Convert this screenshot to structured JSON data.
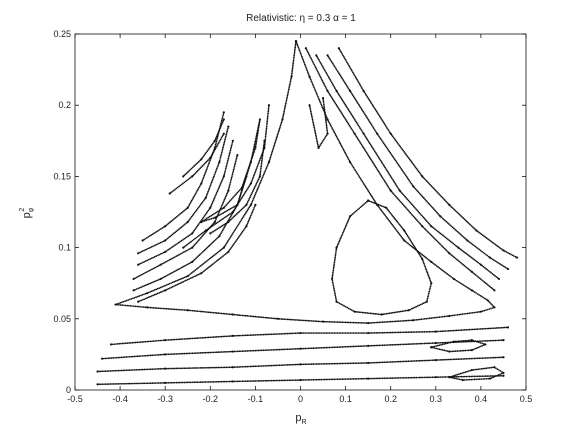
{
  "chart_data": {
    "type": "scatter",
    "title": "Relativistic: η = 0.3 α = 1",
    "xlabel": "pR",
    "ylabel": "pφ2",
    "xlabel_main": "p",
    "xlabel_sub": "R",
    "ylabel_main": "p",
    "ylabel_sub": "φ",
    "ylabel_sup": "2",
    "xlim": [
      -0.5,
      0.5
    ],
    "ylim": [
      0,
      0.25
    ],
    "xticks": [
      -0.5,
      -0.4,
      -0.3,
      -0.2,
      -0.1,
      0,
      0.1,
      0.2,
      0.3,
      0.4,
      0.5
    ],
    "yticks": [
      0,
      0.05,
      0.1,
      0.15,
      0.2,
      0.25
    ],
    "xtick_labels": [
      "-0.5",
      "-0.4",
      "-0.3",
      "-0.2",
      "-0.1",
      "0",
      "0.1",
      "0.2",
      "0.3",
      "0.4",
      "0.5"
    ],
    "ytick_labels": [
      "0",
      "0.05",
      "0.1",
      "0.15",
      "0.2",
      "0.25"
    ],
    "grid": false,
    "marker_color": "#111111",
    "series": [
      {
        "values": [
          [
            -0.01,
            0.245
          ],
          [
            0.02,
            0.22
          ],
          [
            0.06,
            0.19
          ],
          [
            0.11,
            0.16
          ],
          [
            0.17,
            0.13
          ],
          [
            0.23,
            0.105
          ],
          [
            0.29,
            0.09
          ],
          [
            0.34,
            0.078
          ],
          [
            0.38,
            0.07
          ],
          [
            0.415,
            0.063
          ],
          [
            0.43,
            0.058
          ],
          [
            0.4,
            0.055
          ],
          [
            0.33,
            0.052
          ],
          [
            0.25,
            0.049
          ],
          [
            0.15,
            0.047
          ],
          [
            0.05,
            0.048
          ],
          [
            -0.05,
            0.05
          ],
          [
            -0.15,
            0.053
          ],
          [
            -0.25,
            0.056
          ],
          [
            -0.34,
            0.058
          ],
          [
            -0.41,
            0.06
          ],
          [
            -0.34,
            0.068
          ],
          [
            -0.25,
            0.08
          ],
          [
            -0.17,
            0.1
          ],
          [
            -0.11,
            0.13
          ],
          [
            -0.07,
            0.16
          ],
          [
            -0.04,
            0.19
          ],
          [
            -0.02,
            0.22
          ],
          [
            -0.01,
            0.245
          ]
        ]
      },
      {
        "values": [
          [
            0.15,
            0.133
          ],
          [
            0.19,
            0.128
          ],
          [
            0.23,
            0.112
          ],
          [
            0.27,
            0.092
          ],
          [
            0.29,
            0.075
          ],
          [
            0.28,
            0.062
          ],
          [
            0.24,
            0.056
          ],
          [
            0.18,
            0.053
          ],
          [
            0.12,
            0.055
          ],
          [
            0.08,
            0.062
          ],
          [
            0.07,
            0.078
          ],
          [
            0.08,
            0.1
          ],
          [
            0.11,
            0.122
          ],
          [
            0.15,
            0.133
          ]
        ]
      },
      {
        "values": [
          [
            -0.45,
            0.004
          ],
          [
            -0.3,
            0.005
          ],
          [
            -0.15,
            0.006
          ],
          [
            0,
            0.007
          ],
          [
            0.15,
            0.008
          ],
          [
            0.3,
            0.009
          ],
          [
            0.45,
            0.01
          ]
        ]
      },
      {
        "values": [
          [
            -0.45,
            0.013
          ],
          [
            -0.3,
            0.015
          ],
          [
            -0.15,
            0.016
          ],
          [
            0,
            0.018
          ],
          [
            0.15,
            0.019
          ],
          [
            0.3,
            0.021
          ],
          [
            0.45,
            0.023
          ]
        ]
      },
      {
        "values": [
          [
            -0.44,
            0.022
          ],
          [
            -0.3,
            0.025
          ],
          [
            -0.15,
            0.027
          ],
          [
            0,
            0.029
          ],
          [
            0.15,
            0.031
          ],
          [
            0.3,
            0.033
          ],
          [
            0.45,
            0.035
          ]
        ]
      },
      {
        "values": [
          [
            -0.42,
            0.032
          ],
          [
            -0.3,
            0.035
          ],
          [
            -0.15,
            0.038
          ],
          [
            0,
            0.04
          ],
          [
            0.15,
            0.04
          ],
          [
            0.3,
            0.041
          ],
          [
            0.46,
            0.044
          ]
        ]
      },
      {
        "values": [
          [
            0.29,
            0.03
          ],
          [
            0.34,
            0.034
          ],
          [
            0.38,
            0.035
          ],
          [
            0.41,
            0.032
          ],
          [
            0.38,
            0.028
          ],
          [
            0.33,
            0.027
          ],
          [
            0.29,
            0.03
          ]
        ]
      },
      {
        "values": [
          [
            0.33,
            0.009
          ],
          [
            0.38,
            0.014
          ],
          [
            0.43,
            0.016
          ],
          [
            0.45,
            0.012
          ],
          [
            0.42,
            0.008
          ],
          [
            0.36,
            0.007
          ],
          [
            0.33,
            0.009
          ]
        ]
      },
      {
        "values": [
          [
            -0.36,
            0.062
          ],
          [
            -0.3,
            0.07
          ],
          [
            -0.22,
            0.082
          ],
          [
            -0.16,
            0.097
          ],
          [
            -0.12,
            0.115
          ],
          [
            -0.1,
            0.13
          ]
        ]
      },
      {
        "values": [
          [
            -0.37,
            0.07
          ],
          [
            -0.31,
            0.078
          ],
          [
            -0.24,
            0.09
          ],
          [
            -0.18,
            0.108
          ],
          [
            -0.14,
            0.13
          ],
          [
            -0.12,
            0.15
          ]
        ]
      },
      {
        "values": [
          [
            -0.37,
            0.078
          ],
          [
            -0.31,
            0.088
          ],
          [
            -0.24,
            0.1
          ],
          [
            -0.19,
            0.118
          ],
          [
            -0.16,
            0.14
          ],
          [
            -0.14,
            0.165
          ]
        ]
      },
      {
        "values": [
          [
            -0.36,
            0.088
          ],
          [
            -0.3,
            0.097
          ],
          [
            -0.24,
            0.11
          ],
          [
            -0.2,
            0.128
          ],
          [
            -0.17,
            0.15
          ],
          [
            -0.15,
            0.175
          ]
        ]
      },
      {
        "values": [
          [
            -0.36,
            0.096
          ],
          [
            -0.3,
            0.105
          ],
          [
            -0.25,
            0.118
          ],
          [
            -0.21,
            0.135
          ],
          [
            -0.18,
            0.16
          ],
          [
            -0.16,
            0.185
          ]
        ]
      },
      {
        "values": [
          [
            -0.35,
            0.105
          ],
          [
            -0.3,
            0.115
          ],
          [
            -0.25,
            0.128
          ],
          [
            -0.22,
            0.145
          ],
          [
            -0.19,
            0.17
          ],
          [
            -0.17,
            0.195
          ]
        ]
      },
      {
        "values": [
          [
            -0.26,
            0.1
          ],
          [
            -0.21,
            0.112
          ],
          [
            -0.15,
            0.125
          ],
          [
            -0.11,
            0.145
          ],
          [
            -0.08,
            0.17
          ],
          [
            -0.07,
            0.2
          ]
        ]
      },
      {
        "values": [
          [
            -0.2,
            0.11
          ],
          [
            -0.16,
            0.118
          ],
          [
            -0.12,
            0.13
          ],
          [
            -0.09,
            0.15
          ],
          [
            -0.08,
            0.175
          ]
        ]
      },
      {
        "values": [
          [
            -0.29,
            0.138
          ],
          [
            -0.24,
            0.15
          ],
          [
            -0.2,
            0.163
          ],
          [
            -0.17,
            0.18
          ]
        ]
      },
      {
        "values": [
          [
            -0.26,
            0.15
          ],
          [
            -0.22,
            0.162
          ],
          [
            -0.19,
            0.175
          ],
          [
            -0.17,
            0.19
          ]
        ]
      },
      {
        "values": [
          [
            -0.22,
            0.118
          ],
          [
            -0.17,
            0.128
          ],
          [
            -0.13,
            0.142
          ],
          [
            -0.1,
            0.17
          ],
          [
            -0.09,
            0.19
          ],
          [
            -0.11,
            0.16
          ],
          [
            -0.14,
            0.13
          ],
          [
            -0.19,
            0.121
          ],
          [
            -0.22,
            0.118
          ]
        ]
      },
      {
        "values": [
          [
            0.012,
            0.24
          ],
          [
            0.06,
            0.21
          ],
          [
            0.12,
            0.18
          ],
          [
            0.2,
            0.14
          ],
          [
            0.27,
            0.115
          ],
          [
            0.33,
            0.096
          ],
          [
            0.38,
            0.083
          ],
          [
            0.43,
            0.07
          ]
        ]
      },
      {
        "values": [
          [
            0.035,
            0.235
          ],
          [
            0.08,
            0.21
          ],
          [
            0.14,
            0.18
          ],
          [
            0.22,
            0.14
          ],
          [
            0.29,
            0.115
          ],
          [
            0.35,
            0.1
          ],
          [
            0.4,
            0.088
          ],
          [
            0.44,
            0.078
          ]
        ]
      },
      {
        "values": [
          [
            0.06,
            0.235
          ],
          [
            0.11,
            0.21
          ],
          [
            0.17,
            0.18
          ],
          [
            0.25,
            0.143
          ],
          [
            0.31,
            0.122
          ],
          [
            0.37,
            0.105
          ],
          [
            0.42,
            0.093
          ],
          [
            0.46,
            0.085
          ]
        ]
      },
      {
        "values": [
          [
            0.085,
            0.24
          ],
          [
            0.14,
            0.21
          ],
          [
            0.2,
            0.18
          ],
          [
            0.27,
            0.15
          ],
          [
            0.33,
            0.13
          ],
          [
            0.39,
            0.112
          ],
          [
            0.45,
            0.098
          ],
          [
            0.48,
            0.093
          ]
        ]
      },
      {
        "values": [
          [
            0.02,
            0.2
          ],
          [
            0.04,
            0.17
          ],
          [
            0.06,
            0.18
          ],
          [
            0.05,
            0.205
          ]
        ]
      }
    ]
  }
}
